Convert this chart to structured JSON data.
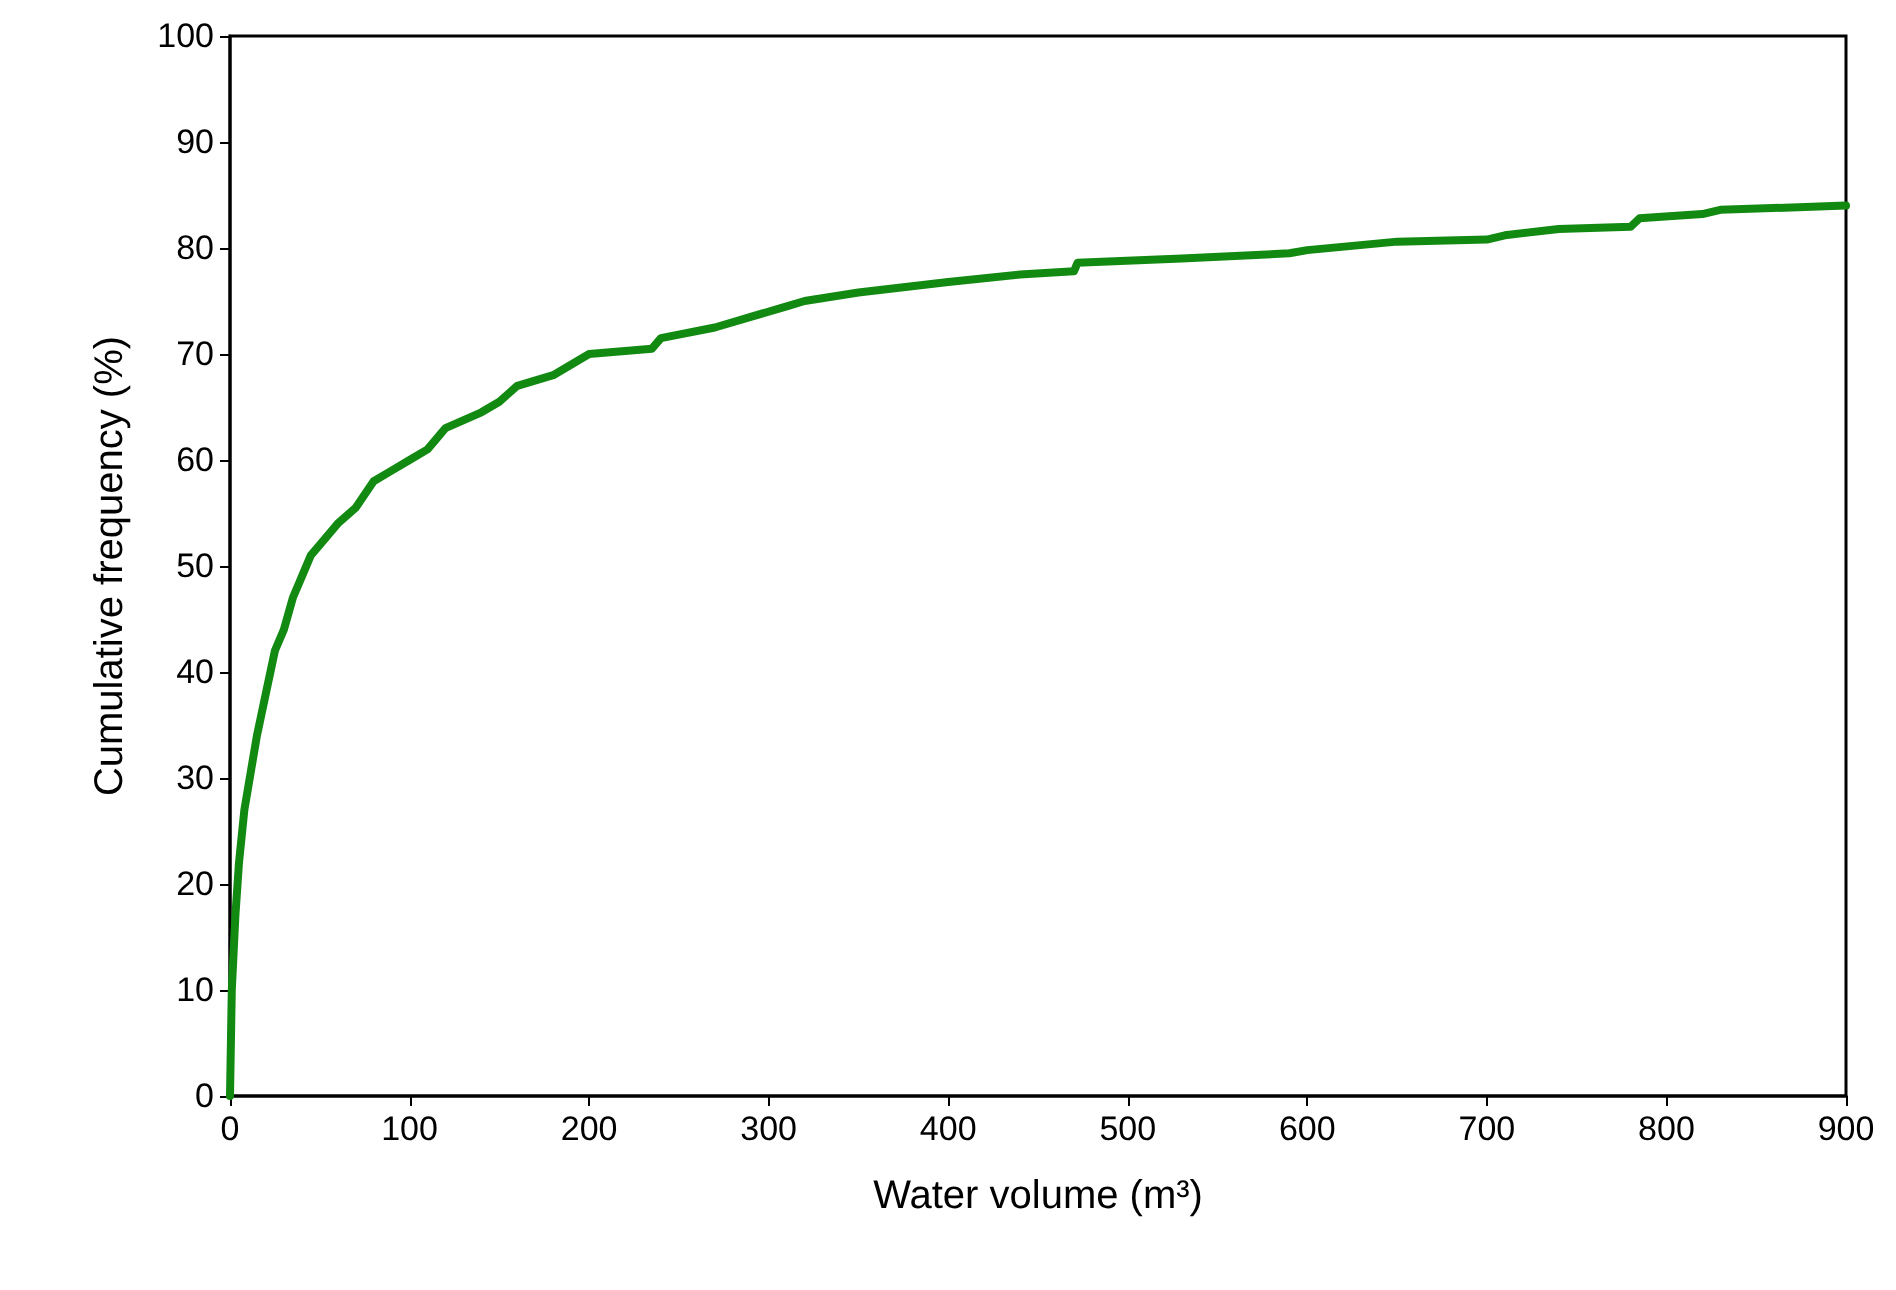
{
  "chart_data": {
    "type": "line",
    "xlabel": "Water volume (m³)",
    "ylabel": "Cumulative frequency (%)",
    "series": [
      {
        "color": "#128a12",
        "x": [
          0,
          1,
          3,
          5,
          8,
          12,
          15,
          20,
          25,
          30,
          35,
          40,
          45,
          50,
          60,
          70,
          80,
          90,
          100,
          110,
          120,
          140,
          150,
          160,
          180,
          200,
          235,
          240,
          270,
          290,
          310,
          320,
          350,
          400,
          440,
          470,
          472,
          530,
          590,
          600,
          650,
          700,
          710,
          740,
          780,
          785,
          820,
          830,
          900
        ],
        "values": [
          0,
          10,
          17,
          22,
          27,
          31,
          34,
          38,
          42,
          44,
          47,
          49,
          51,
          52,
          54,
          55.5,
          58,
          59,
          60,
          61,
          63,
          64.5,
          65.5,
          67,
          68,
          70,
          70.5,
          71.5,
          72.5,
          73.5,
          74.5,
          75,
          75.8,
          76.8,
          77.5,
          77.8,
          78.6,
          79,
          79.5,
          79.8,
          80.6,
          80.8,
          81.2,
          81.8,
          82,
          82.8,
          83.2,
          83.6,
          84
        ]
      }
    ],
    "xlim": [
      0,
      900
    ],
    "xticks": [
      0,
      100,
      200,
      300,
      400,
      500,
      600,
      700,
      800,
      900
    ],
    "ylim": [
      0,
      100
    ],
    "yticks": [
      0,
      10,
      20,
      30,
      40,
      50,
      60,
      70,
      80,
      90,
      100
    ],
    "grid": false,
    "marker": "none",
    "line_style": "solid"
  }
}
